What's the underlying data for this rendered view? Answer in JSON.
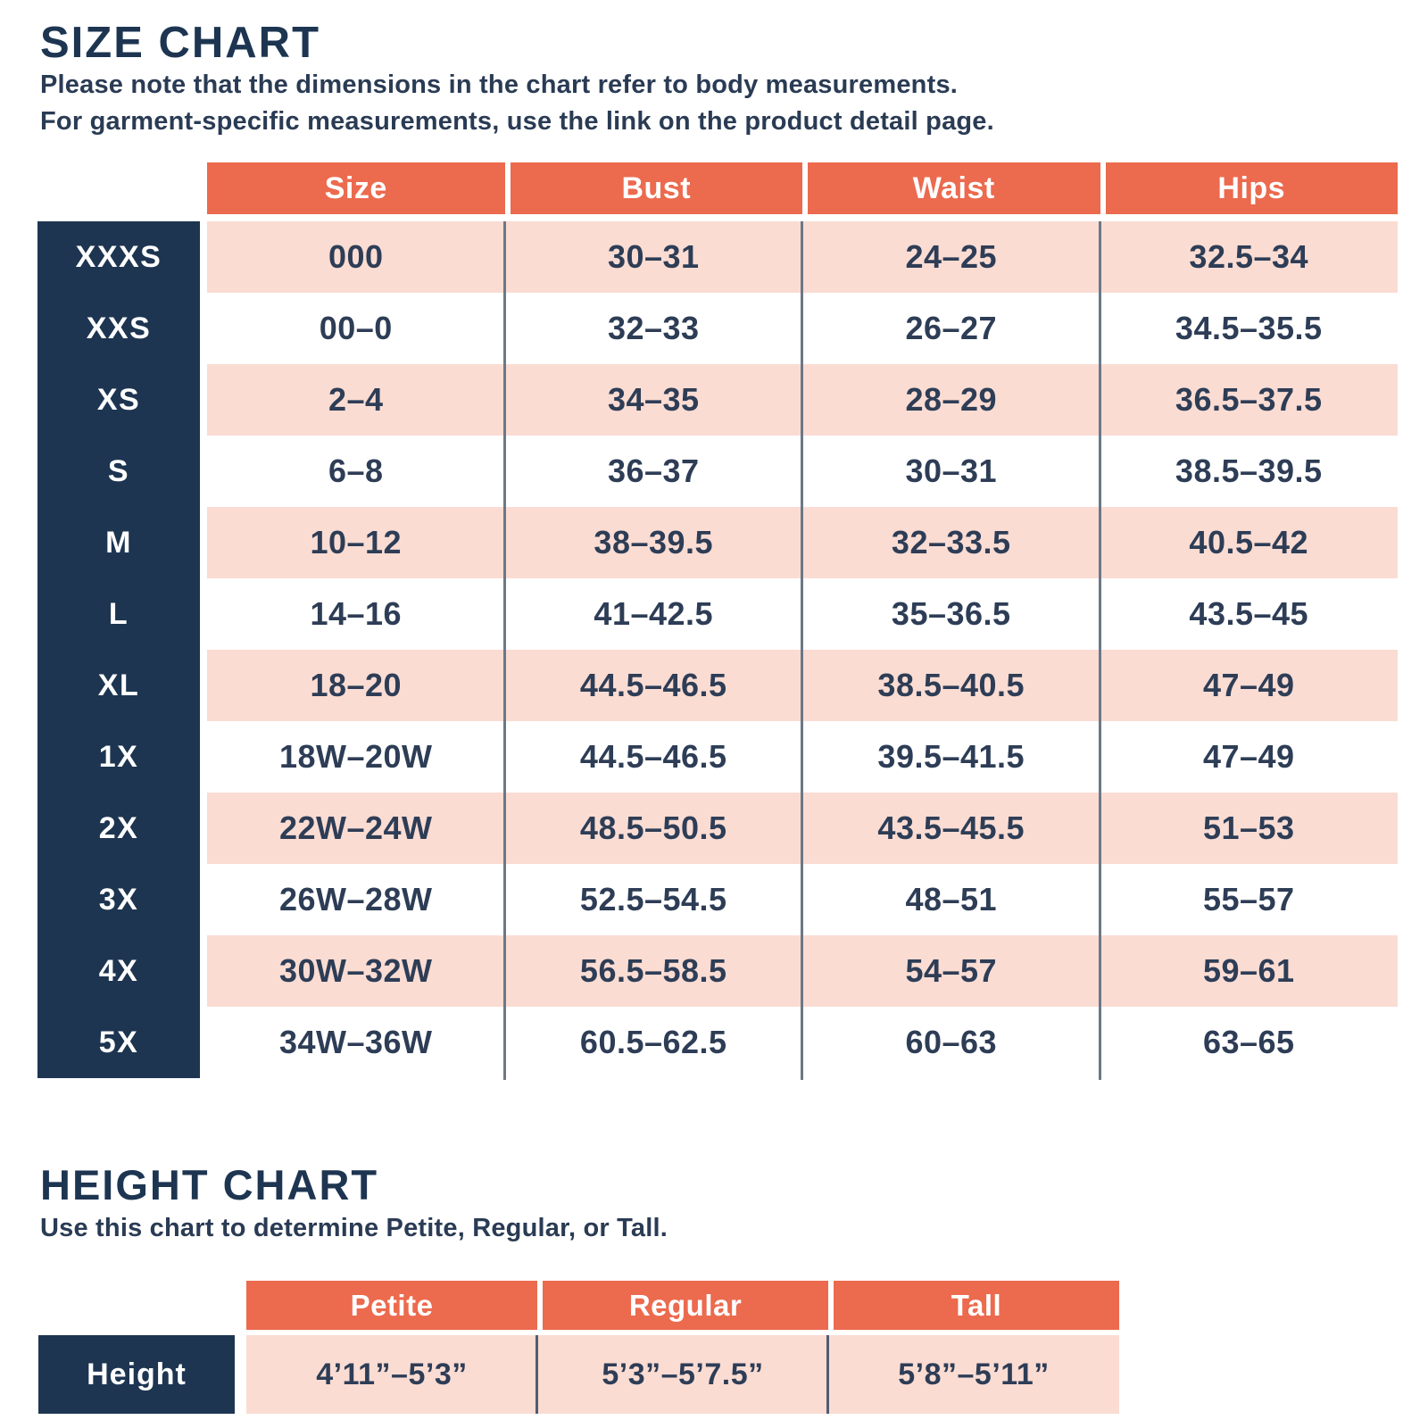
{
  "colors": {
    "navy": "#1d3551",
    "coral": "#ec6a4e",
    "pink": "#fadcd3",
    "text_dark": "#2e3d56",
    "divider_gray": "#6b7887"
  },
  "size_chart": {
    "title": "SIZE CHART",
    "subtitle_line1": "Please note that the dimensions in the chart refer to body measurements.",
    "subtitle_line2": "For garment-specific measurements, use the link on the product detail page.",
    "columns": [
      "Size",
      "Bust",
      "Waist",
      "Hips"
    ],
    "rows": [
      {
        "label": "XXXS",
        "size": "000",
        "bust": "30–31",
        "waist": "24–25",
        "hips": "32.5–34"
      },
      {
        "label": "XXS",
        "size": "00–0",
        "bust": "32–33",
        "waist": "26–27",
        "hips": "34.5–35.5"
      },
      {
        "label": "XS",
        "size": "2–4",
        "bust": "34–35",
        "waist": "28–29",
        "hips": "36.5–37.5"
      },
      {
        "label": "S",
        "size": "6–8",
        "bust": "36–37",
        "waist": "30–31",
        "hips": "38.5–39.5"
      },
      {
        "label": "M",
        "size": "10–12",
        "bust": "38–39.5",
        "waist": "32–33.5",
        "hips": "40.5–42"
      },
      {
        "label": "L",
        "size": "14–16",
        "bust": "41–42.5",
        "waist": "35–36.5",
        "hips": "43.5–45"
      },
      {
        "label": "XL",
        "size": "18–20",
        "bust": "44.5–46.5",
        "waist": "38.5–40.5",
        "hips": "47–49"
      },
      {
        "label": "1X",
        "size": "18W–20W",
        "bust": "44.5–46.5",
        "waist": "39.5–41.5",
        "hips": "47–49"
      },
      {
        "label": "2X",
        "size": "22W–24W",
        "bust": "48.5–50.5",
        "waist": "43.5–45.5",
        "hips": "51–53"
      },
      {
        "label": "3X",
        "size": "26W–28W",
        "bust": "52.5–54.5",
        "waist": "48–51",
        "hips": "55–57"
      },
      {
        "label": "4X",
        "size": "30W–32W",
        "bust": "56.5–58.5",
        "waist": "54–57",
        "hips": "59–61"
      },
      {
        "label": "5X",
        "size": "34W–36W",
        "bust": "60.5–62.5",
        "waist": "60–63",
        "hips": "63–65"
      }
    ]
  },
  "height_chart": {
    "title": "HEIGHT CHART",
    "subtitle": "Use this chart to determine Petite, Regular, or Tall.",
    "columns": [
      "Petite",
      "Regular",
      "Tall"
    ],
    "row_label": "Height",
    "values": [
      "4’11”–5’3”",
      "5’3”–5’7.5”",
      "5’8”–5’11”"
    ]
  }
}
